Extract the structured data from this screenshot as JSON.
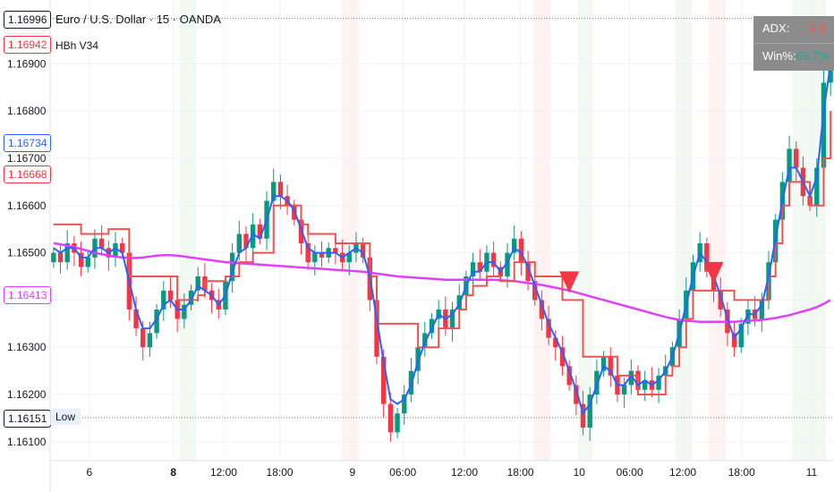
{
  "header": {
    "currency": "USD",
    "title": "Euro / U.S. Dollar · 15 · OANDA",
    "indicator": "HBh V34"
  },
  "stats_table": {
    "adx_label": "ADX:",
    "adx_value": "9.3",
    "adx_color": "#ff5252",
    "win_label": "Win%:",
    "win_value": "66.7%",
    "win_color": "#26a69a"
  },
  "low_label": "Low",
  "price_tags": [
    {
      "value": "1.16996",
      "color": "#131722"
    },
    {
      "value": "1.16942",
      "color": "#f23645"
    },
    {
      "value": "1.16734",
      "color": "#2962ff"
    },
    {
      "value": "1.16668",
      "color": "#f23645"
    },
    {
      "value": "1.16413",
      "color": "#e040fb"
    },
    {
      "value": "1.16151",
      "color": "#131722"
    }
  ],
  "chart_data": {
    "type": "candlestick",
    "title": "Euro / U.S. Dollar · 15 · OANDA",
    "y_ticks": [
      "1.16900",
      "1.16800",
      "1.16700",
      "1.16600",
      "1.16500",
      "1.16400",
      "1.16300",
      "1.16200",
      "1.16100"
    ],
    "ylim": [
      1.1606,
      1.17035
    ],
    "x_ticks": [
      "6",
      "8",
      "12:00",
      "18:00",
      "9",
      "06:00",
      "12:00",
      "18:00",
      "10",
      "06:00",
      "12:00",
      "18:00",
      "11"
    ],
    "colors": {
      "up": "#089981",
      "down": "#f23645",
      "trail": "#ef5350",
      "fast": "#2962ff",
      "ma": "#e040fb"
    },
    "series": [
      {
        "name": "close",
        "values": [
          1.165,
          1.1648,
          1.1652,
          1.165,
          1.1647,
          1.1649,
          1.1653,
          1.1651,
          1.1649,
          1.1652,
          1.165,
          1.1638,
          1.1634,
          1.163,
          1.1633,
          1.1638,
          1.1642,
          1.164,
          1.1636,
          1.1639,
          1.1642,
          1.1645,
          1.1642,
          1.164,
          1.1638,
          1.1644,
          1.165,
          1.1654,
          1.1651,
          1.1656,
          1.1653,
          1.1661,
          1.1665,
          1.1662,
          1.166,
          1.1657,
          1.1652,
          1.1648,
          1.165,
          1.1649,
          1.1651,
          1.165,
          1.1648,
          1.165,
          1.1652,
          1.1649,
          1.164,
          1.1628,
          1.1618,
          1.1612,
          1.1616,
          1.162,
          1.1625,
          1.163,
          1.1633,
          1.1636,
          1.1638,
          1.1634,
          1.1638,
          1.1641,
          1.1645,
          1.1648,
          1.1646,
          1.165,
          1.1647,
          1.1645,
          1.165,
          1.1653,
          1.1648,
          1.1644,
          1.164,
          1.1636,
          1.1632,
          1.163,
          1.1626,
          1.1622,
          1.1618,
          1.1613,
          1.162,
          1.1625,
          1.1628,
          1.1624,
          1.162,
          1.1622,
          1.1625,
          1.1621,
          1.1623,
          1.1621,
          1.1624,
          1.1626,
          1.163,
          1.1636,
          1.1642,
          1.1648,
          1.1652,
          1.1646,
          1.1642,
          1.1638,
          1.1633,
          1.163,
          1.1635,
          1.1638,
          1.1636,
          1.164,
          1.1648,
          1.1657,
          1.1665,
          1.1672,
          1.1668,
          1.1662,
          1.166,
          1.1668,
          1.1686,
          1.1694
        ]
      },
      {
        "name": "fast",
        "values": [
          1.1651,
          1.165,
          1.1651,
          1.1651,
          1.1649,
          1.1649,
          1.1651,
          1.1651,
          1.165,
          1.1651,
          1.165,
          1.1644,
          1.1638,
          1.1634,
          1.1634,
          1.1636,
          1.1639,
          1.164,
          1.1638,
          1.1638,
          1.164,
          1.1643,
          1.1642,
          1.1641,
          1.1639,
          1.1641,
          1.1646,
          1.165,
          1.1651,
          1.1654,
          1.1653,
          1.1657,
          1.1662,
          1.1662,
          1.1661,
          1.1659,
          1.1655,
          1.1651,
          1.165,
          1.165,
          1.165,
          1.165,
          1.1649,
          1.165,
          1.1651,
          1.165,
          1.1645,
          1.1636,
          1.1627,
          1.1619,
          1.1618,
          1.1619,
          1.1622,
          1.1627,
          1.1631,
          1.1634,
          1.1637,
          1.1636,
          1.1637,
          1.1639,
          1.1643,
          1.1646,
          1.1646,
          1.1648,
          1.1648,
          1.1646,
          1.1648,
          1.1651,
          1.165,
          1.1647,
          1.1643,
          1.1639,
          1.1635,
          1.1632,
          1.1629,
          1.1625,
          1.1621,
          1.1616,
          1.1618,
          1.1622,
          1.1626,
          1.1625,
          1.1622,
          1.1622,
          1.1624,
          1.1622,
          1.1623,
          1.1622,
          1.1623,
          1.1625,
          1.1628,
          1.1633,
          1.1639,
          1.1645,
          1.165,
          1.1648,
          1.1645,
          1.1641,
          1.1636,
          1.1632,
          1.1634,
          1.1637,
          1.1637,
          1.1639,
          1.1645,
          1.1653,
          1.1661,
          1.1668,
          1.1668,
          1.1665,
          1.1662,
          1.1666,
          1.168,
          1.169
        ]
      },
      {
        "name": "trail",
        "values": [
          1.1656,
          1.1656,
          1.1656,
          1.1656,
          1.1654,
          1.1654,
          1.1654,
          1.1654,
          1.1655,
          1.1655,
          1.1655,
          1.1645,
          1.1645,
          1.1645,
          1.1645,
          1.1645,
          1.1645,
          1.1645,
          1.164,
          1.164,
          1.164,
          1.1641,
          1.1644,
          1.1644,
          1.1644,
          1.1645,
          1.1645,
          1.1648,
          1.1648,
          1.165,
          1.165,
          1.165,
          1.166,
          1.166,
          1.166,
          1.166,
          1.1656,
          1.1654,
          1.1654,
          1.1654,
          1.1654,
          1.1652,
          1.1652,
          1.1652,
          1.1652,
          1.1652,
          1.1645,
          1.1635,
          1.1635,
          1.1635,
          1.1635,
          1.1635,
          1.1635,
          1.163,
          1.163,
          1.163,
          1.1634,
          1.1634,
          1.1634,
          1.1638,
          1.1641,
          1.1643,
          1.1643,
          1.1645,
          1.1645,
          1.1644,
          1.1644,
          1.1648,
          1.1648,
          1.1648,
          1.1645,
          1.1645,
          1.1645,
          1.1645,
          1.164,
          1.164,
          1.164,
          1.1628,
          1.1628,
          1.1628,
          1.1628,
          1.1628,
          1.1624,
          1.1624,
          1.1624,
          1.162,
          1.162,
          1.162,
          1.162,
          1.1624,
          1.1626,
          1.163,
          1.1636,
          1.1642,
          1.1642,
          1.1642,
          1.1642,
          1.1642,
          1.1642,
          1.164,
          1.164,
          1.164,
          1.164,
          1.164,
          1.1645,
          1.1652,
          1.166,
          1.1665,
          1.1665,
          1.1665,
          1.166,
          1.166,
          1.167,
          1.168
        ]
      },
      {
        "name": "ma",
        "values": [
          1.1652,
          1.16518,
          1.16515,
          1.16512,
          1.16508,
          1.16504,
          1.165,
          1.16497,
          1.16494,
          1.16492,
          1.1649,
          1.16489,
          1.16489,
          1.1649,
          1.16492,
          1.16494,
          1.16495,
          1.16495,
          1.16494,
          1.16492,
          1.1649,
          1.16488,
          1.16486,
          1.16484,
          1.16482,
          1.1648,
          1.16479,
          1.16478,
          1.16477,
          1.16476,
          1.16475,
          1.16474,
          1.16473,
          1.16472,
          1.16471,
          1.1647,
          1.16469,
          1.16468,
          1.16467,
          1.16466,
          1.16465,
          1.16464,
          1.16463,
          1.16462,
          1.16461,
          1.1646,
          1.16458,
          1.16456,
          1.16454,
          1.16452,
          1.1645,
          1.16449,
          1.16448,
          1.16447,
          1.16446,
          1.16445,
          1.16444,
          1.16443,
          1.16443,
          1.16443,
          1.16443,
          1.16443,
          1.16443,
          1.16443,
          1.16443,
          1.16442,
          1.16441,
          1.1644,
          1.16438,
          1.16436,
          1.16434,
          1.16432,
          1.16429,
          1.16426,
          1.16423,
          1.1642,
          1.16416,
          1.16412,
          1.16408,
          1.16404,
          1.164,
          1.16396,
          1.16392,
          1.16388,
          1.16384,
          1.1638,
          1.16376,
          1.16372,
          1.16368,
          1.16364,
          1.16361,
          1.16358,
          1.16356,
          1.16355,
          1.16354,
          1.16354,
          1.16354,
          1.16354,
          1.16354,
          1.16354,
          1.16355,
          1.16356,
          1.16357,
          1.16358,
          1.1636,
          1.16362,
          1.16365,
          1.16368,
          1.16372,
          1.16376,
          1.1638,
          1.16385,
          1.16392,
          1.164
        ]
      }
    ],
    "sell_signals": [
      {
        "bar": 75
      },
      {
        "bar": 96
      }
    ],
    "horizontal_lines": [
      1.16996,
      1.16151
    ]
  }
}
